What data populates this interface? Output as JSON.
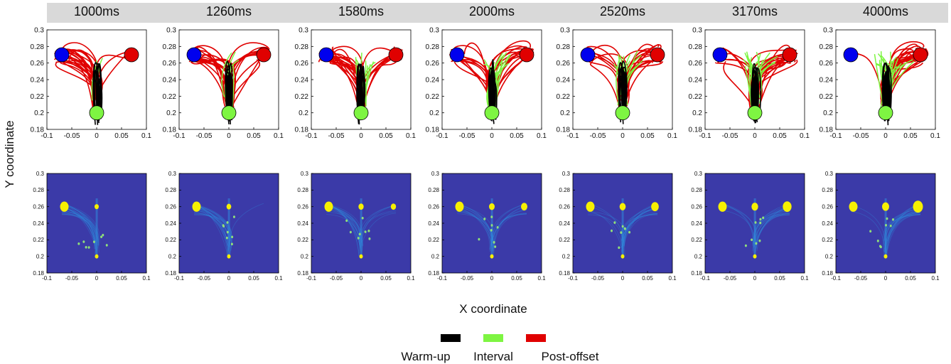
{
  "columns": [
    "1000ms",
    "1260ms",
    "1580ms",
    "2000ms",
    "2520ms",
    "3170ms",
    "4000ms"
  ],
  "axes": {
    "x_label": "X coordinate",
    "y_label": "Y coordinate",
    "xlim": [
      -0.1,
      0.1
    ],
    "ylim": [
      0.18,
      0.3
    ],
    "x_ticks": [
      -0.1,
      -0.05,
      0,
      0.05,
      0.1
    ],
    "x_tick_labels": [
      "-0.1",
      "-0.05",
      "0",
      "0.05",
      "0.1"
    ],
    "y_ticks": [
      0.18,
      0.2,
      0.22,
      0.24,
      0.26,
      0.28,
      0.3
    ],
    "y_tick_labels": [
      "0.18",
      "0.2",
      "0.22",
      "0.24",
      "0.26",
      "0.28",
      "0.3"
    ]
  },
  "legend": [
    {
      "label": "Warm-up",
      "color": "#000000"
    },
    {
      "label": "Interval",
      "color": "#7ef542"
    },
    {
      "label": "Post-offset",
      "color": "#e00000"
    }
  ],
  "colors": {
    "left_target": "#0000ee",
    "right_target": "#e00000",
    "start_target": "#7ef542",
    "heatmap_background": "#3b3aa8",
    "heatmap_low": "#2f8fe0",
    "heatmap_high": "#f7f000"
  },
  "chart_data": [
    {
      "type": "line",
      "row": "trajectories",
      "series_names": [
        "Warm-up",
        "Interval",
        "Post-offset"
      ],
      "targets": {
        "left": [
          -0.07,
          0.27
        ],
        "right": [
          0.07,
          0.27
        ],
        "start": [
          0,
          0.2
        ]
      },
      "xlim": [
        -0.1,
        0.1
      ],
      "ylim": [
        0.18,
        0.3
      ]
    },
    {
      "type": "heatmap",
      "row": "density",
      "hotspots": {
        "left": [
          -0.07,
          0.26
        ],
        "center": [
          0,
          0.26
        ],
        "right": [
          0.07,
          0.26
        ]
      },
      "xlim": [
        -0.1,
        0.1
      ],
      "ylim": [
        0.18,
        0.3
      ]
    }
  ]
}
